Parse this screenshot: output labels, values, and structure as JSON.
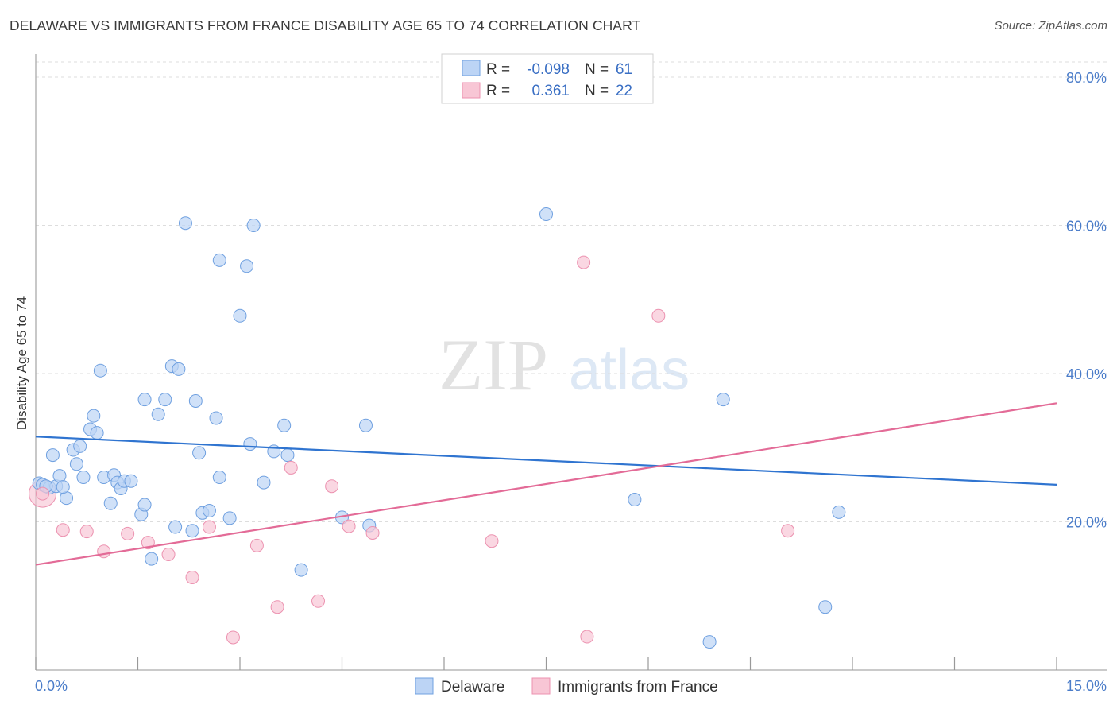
{
  "header": {
    "title": "DELAWARE VS IMMIGRANTS FROM FRANCE DISABILITY AGE 65 TO 74 CORRELATION CHART",
    "source": "Source: ZipAtlas.com"
  },
  "watermark": {
    "zip": "ZIP",
    "atlas": "atlas"
  },
  "legend": {
    "r_label": "R =",
    "n_label": "N =",
    "rows": [
      {
        "name": "Delaware",
        "r": "-0.098",
        "n": "61",
        "color": "#6fa0e0"
      },
      {
        "name": "Immigrants from France",
        "r": "0.361",
        "n": "22",
        "color": "#f09ab5"
      }
    ]
  },
  "colors": {
    "delaware_fill": "#bcd4f5",
    "delaware_stroke": "#6fa0e0",
    "delaware_line": "#2f74d0",
    "france_fill": "#f8c6d5",
    "france_stroke": "#ec92b0",
    "france_line": "#e36b97",
    "tick_text": "#4a7cc9",
    "grid": "#dddddd"
  },
  "chart_data": {
    "type": "scatter",
    "title": "DELAWARE VS IMMIGRANTS FROM FRANCE DISABILITY AGE 65 TO 74 CORRELATION CHART",
    "xlabel": "",
    "ylabel": "Disability Age 65 to 74",
    "xlim": [
      0,
      15
    ],
    "ylim": [
      0,
      80
    ],
    "x_tick_labels": [
      "0.0%",
      "15.0%"
    ],
    "y_ticks": [
      20,
      40,
      60,
      80
    ],
    "y_tick_labels": [
      "20.0%",
      "40.0%",
      "60.0%",
      "80.0%"
    ],
    "grid": true,
    "legend_position": "top-center",
    "series": [
      {
        "name": "Delaware",
        "r": -0.098,
        "n": 61,
        "trend": {
          "x": [
            0,
            15
          ],
          "y": [
            31.5,
            25.0
          ]
        },
        "points": [
          [
            0.05,
            25.2
          ],
          [
            0.1,
            25.0
          ],
          [
            0.2,
            24.6
          ],
          [
            0.25,
            29.0
          ],
          [
            0.3,
            24.8
          ],
          [
            0.35,
            26.2
          ],
          [
            0.45,
            23.2
          ],
          [
            0.55,
            29.7
          ],
          [
            0.6,
            27.8
          ],
          [
            0.65,
            30.2
          ],
          [
            0.7,
            26.0
          ],
          [
            0.8,
            32.5
          ],
          [
            0.85,
            34.3
          ],
          [
            0.9,
            32.0
          ],
          [
            0.95,
            40.4
          ],
          [
            1.0,
            26.0
          ],
          [
            1.1,
            22.5
          ],
          [
            1.15,
            26.3
          ],
          [
            1.2,
            25.3
          ],
          [
            1.25,
            24.5
          ],
          [
            1.3,
            25.5
          ],
          [
            1.4,
            25.5
          ],
          [
            1.55,
            21.0
          ],
          [
            1.6,
            22.3
          ],
          [
            1.6,
            36.5
          ],
          [
            1.7,
            15.0
          ],
          [
            1.8,
            34.5
          ],
          [
            1.9,
            36.5
          ],
          [
            2.05,
            19.3
          ],
          [
            2.0,
            41.0
          ],
          [
            2.1,
            40.6
          ],
          [
            2.2,
            60.3
          ],
          [
            2.3,
            18.8
          ],
          [
            2.35,
            36.3
          ],
          [
            2.4,
            29.3
          ],
          [
            2.45,
            21.2
          ],
          [
            2.55,
            21.5
          ],
          [
            2.65,
            34.0
          ],
          [
            2.7,
            26.0
          ],
          [
            2.7,
            55.3
          ],
          [
            2.85,
            20.5
          ],
          [
            3.0,
            47.8
          ],
          [
            3.1,
            54.5
          ],
          [
            3.15,
            30.5
          ],
          [
            3.2,
            60.0
          ],
          [
            3.35,
            25.3
          ],
          [
            3.5,
            29.5
          ],
          [
            3.65,
            33.0
          ],
          [
            3.7,
            29.0
          ],
          [
            3.9,
            13.5
          ],
          [
            4.5,
            20.6
          ],
          [
            4.85,
            33.0
          ],
          [
            4.9,
            19.5
          ],
          [
            7.5,
            61.5
          ],
          [
            8.8,
            23.0
          ],
          [
            9.9,
            3.8
          ],
          [
            10.1,
            36.5
          ],
          [
            11.6,
            8.5
          ],
          [
            11.8,
            21.3
          ],
          [
            0.15,
            24.8
          ],
          [
            0.4,
            24.7
          ]
        ]
      },
      {
        "name": "Immigrants from France",
        "r": 0.361,
        "n": 22,
        "trend": {
          "x": [
            0,
            15
          ],
          "y": [
            14.2,
            36.0
          ]
        },
        "points": [
          [
            0.1,
            23.8
          ],
          [
            0.4,
            18.9
          ],
          [
            0.75,
            18.7
          ],
          [
            1.0,
            16.0
          ],
          [
            1.35,
            18.4
          ],
          [
            1.65,
            17.2
          ],
          [
            1.95,
            15.6
          ],
          [
            2.3,
            12.5
          ],
          [
            2.55,
            19.3
          ],
          [
            2.9,
            4.4
          ],
          [
            3.25,
            16.8
          ],
          [
            3.55,
            8.5
          ],
          [
            3.75,
            27.3
          ],
          [
            4.15,
            9.3
          ],
          [
            4.35,
            24.8
          ],
          [
            4.6,
            19.4
          ],
          [
            4.95,
            18.5
          ],
          [
            6.7,
            17.4
          ],
          [
            8.05,
            55.0
          ],
          [
            8.1,
            4.5
          ],
          [
            9.15,
            47.8
          ],
          [
            11.05,
            18.8
          ]
        ]
      }
    ]
  }
}
